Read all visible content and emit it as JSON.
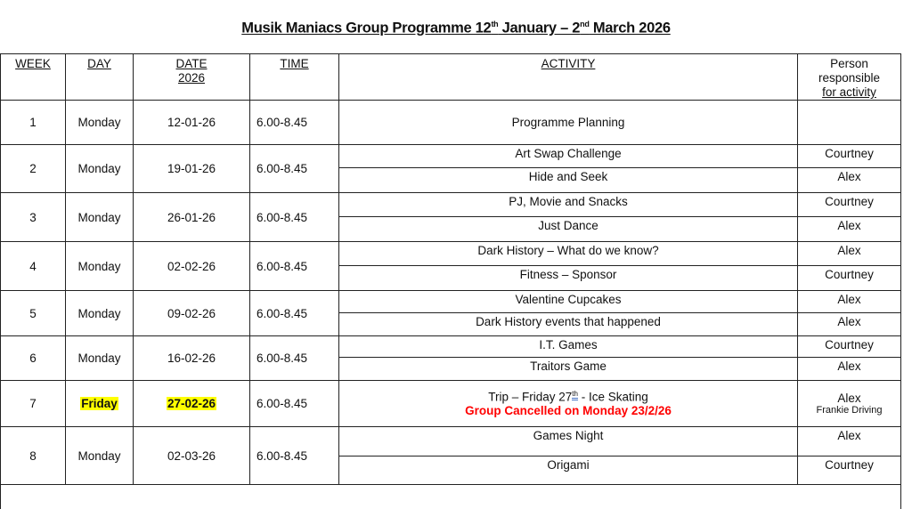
{
  "title": {
    "prefix": "Musik Maniacs Group Programme 12",
    "sup1": "th",
    "middle": " January – 2",
    "sup2": "nd",
    "suffix": " March 2026"
  },
  "headers": {
    "week": "WEEK",
    "day": "DAY",
    "date": "DATE",
    "date_year": "2026",
    "time": "TIME",
    "activity": "ACTIVITY",
    "person": "Person responsible",
    "person_underlined": "for activity"
  },
  "weeks": [
    {
      "week": "1",
      "day": "Monday",
      "date": "12-01-26",
      "time": "6.00-8.45",
      "activities": [
        {
          "activity": "Programme Planning",
          "person": ""
        }
      ]
    },
    {
      "week": "2",
      "day": "Monday",
      "date": "19-01-26",
      "time": "6.00-8.45",
      "activities": [
        {
          "activity": "Art Swap Challenge",
          "person": "Courtney"
        },
        {
          "activity": "Hide and Seek",
          "person": "Alex"
        }
      ]
    },
    {
      "week": "3",
      "day": "Monday",
      "date": "26-01-26",
      "time": "6.00-8.45",
      "activities": [
        {
          "activity": "PJ, Movie and Snacks",
          "person": "Courtney"
        },
        {
          "activity": "Just Dance",
          "person": "Alex"
        }
      ]
    },
    {
      "week": "4",
      "day": "Monday",
      "date": "02-02-26",
      "time": "6.00-8.45",
      "activities": [
        {
          "activity": "Dark History – What do we know?",
          "person": "Alex"
        },
        {
          "activity": "Fitness – Sponsor",
          "person": "Courtney"
        }
      ]
    },
    {
      "week": "5",
      "day": "Monday",
      "date": "09-02-26",
      "time": "6.00-8.45",
      "activities": [
        {
          "activity": "Valentine Cupcakes",
          "person": "Alex"
        },
        {
          "activity": "Dark History events that happened",
          "person": "Alex"
        }
      ]
    },
    {
      "week": "6",
      "day": "Monday",
      "date": "16-02-26",
      "time": "6.00-8.45",
      "activities": [
        {
          "activity": "I.T. Games",
          "person": "Courtney"
        },
        {
          "activity": "Traitors Game",
          "person": "Alex"
        }
      ]
    },
    {
      "week": "7",
      "day": "Friday",
      "date": "27-02-26",
      "time": "6.00-8.45",
      "highlight": true,
      "activities": [
        {
          "activity": "Trip – Friday 27",
          "activity_sup": "th",
          "activity_suffix": " - Ice Skating",
          "note": "Group Cancelled on Monday 23/2/26",
          "person": "Alex",
          "person_note": "Frankie Driving"
        }
      ]
    },
    {
      "week": "8",
      "day": "Monday",
      "date": "02-03-26",
      "time": "6.00-8.45",
      "activities": [
        {
          "activity": "Games Night",
          "person": "Alex"
        },
        {
          "activity": "Origami",
          "person": "Courtney"
        }
      ]
    }
  ],
  "colors": {
    "highlight": "#ffff00",
    "cancel_note": "#ff0000"
  }
}
